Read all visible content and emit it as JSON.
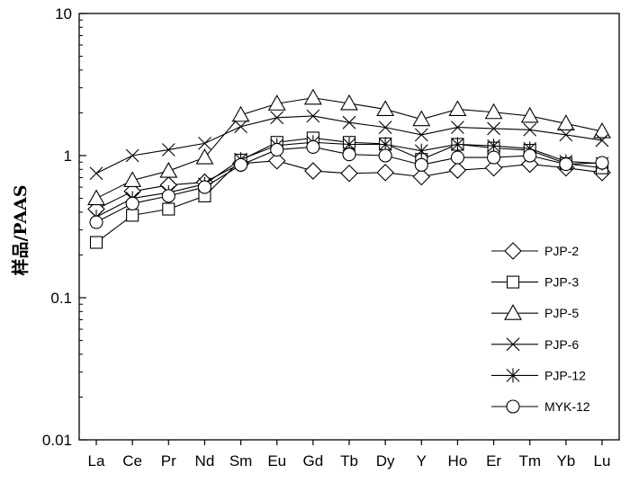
{
  "chart_data": {
    "type": "line",
    "yscale": "log",
    "ylim": [
      0.01,
      10
    ],
    "ylabel": "样品/PAAS",
    "xlabel": "",
    "title": "",
    "grid": false,
    "legend_position": "bottom-right",
    "categories": [
      "La",
      "Ce",
      "Pr",
      "Nd",
      "Sm",
      "Eu",
      "Gd",
      "Tb",
      "Dy",
      "Y",
      "Ho",
      "Er",
      "Tm",
      "Yb",
      "Lu"
    ],
    "y_ticks": [
      {
        "value": 10,
        "label": "10"
      },
      {
        "value": 1,
        "label": "1"
      },
      {
        "value": 0.1,
        "label": "0.1"
      },
      {
        "value": 0.01,
        "label": "0.01"
      }
    ],
    "series": [
      {
        "name": "PJP-2",
        "marker": "diamond",
        "values": [
          0.42,
          0.56,
          0.62,
          0.65,
          0.88,
          0.92,
          0.78,
          0.75,
          0.76,
          0.71,
          0.79,
          0.82,
          0.87,
          0.82,
          0.76
        ]
      },
      {
        "name": "PJP-3",
        "marker": "square",
        "values": [
          0.245,
          0.38,
          0.42,
          0.52,
          0.93,
          1.24,
          1.33,
          1.24,
          1.21,
          0.94,
          1.2,
          1.13,
          1.09,
          0.88,
          0.82
        ]
      },
      {
        "name": "PJP-5",
        "marker": "triangle",
        "values": [
          0.5,
          0.67,
          0.78,
          0.97,
          1.93,
          2.32,
          2.55,
          2.33,
          2.12,
          1.8,
          2.12,
          2.02,
          1.9,
          1.68,
          1.48
        ]
      },
      {
        "name": "PJP-6",
        "marker": "x",
        "values": [
          0.75,
          1.0,
          1.1,
          1.22,
          1.6,
          1.85,
          1.9,
          1.71,
          1.58,
          1.4,
          1.58,
          1.55,
          1.52,
          1.4,
          1.28
        ]
      },
      {
        "name": "PJP-12",
        "marker": "asterisk",
        "values": [
          0.37,
          0.5,
          0.55,
          0.63,
          0.94,
          1.18,
          1.24,
          1.2,
          1.2,
          1.08,
          1.2,
          1.17,
          1.12,
          0.91,
          0.88
        ]
      },
      {
        "name": "MYK-12",
        "marker": "circle",
        "values": [
          0.34,
          0.46,
          0.52,
          0.6,
          0.86,
          1.1,
          1.15,
          1.02,
          1.0,
          0.86,
          0.97,
          0.97,
          1.0,
          0.87,
          0.89
        ]
      }
    ]
  }
}
